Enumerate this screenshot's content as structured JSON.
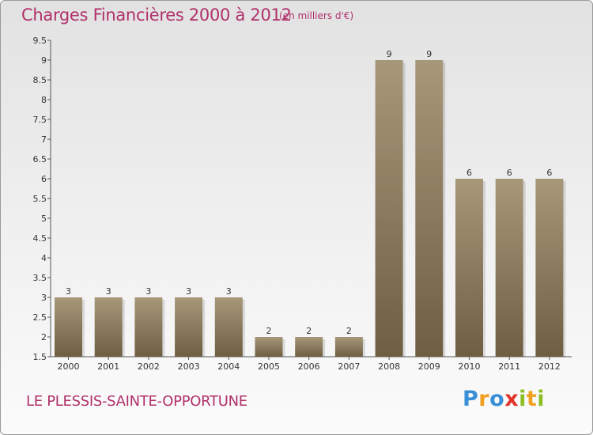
{
  "title": "Charges Financières 2000 à 2012",
  "subtitle": "(en milliers d'€)",
  "place": "LE PLESSIS-SAINTE-OPPORTUNE",
  "logo": {
    "letters": [
      "P",
      "r",
      "o",
      "x",
      "i",
      "t",
      "i"
    ],
    "colors": [
      "#3a8fd6",
      "#f0a020",
      "#3a8fd6",
      "#e0342a",
      "#8cbf26",
      "#f0a020",
      "#8cbf26"
    ]
  },
  "colors": {
    "bar_top": "#a8987a",
    "bar_bottom": "#6e5e42",
    "text_accent": "#b0306a"
  },
  "chart_data": {
    "type": "bar",
    "categories": [
      "2000",
      "2001",
      "2002",
      "2003",
      "2004",
      "2005",
      "2006",
      "2007",
      "2008",
      "2009",
      "2010",
      "2011",
      "2012"
    ],
    "values": [
      3,
      3,
      3,
      3,
      3,
      2,
      2,
      2,
      9,
      9,
      6,
      6,
      6
    ],
    "data_labels": [
      "3",
      "3",
      "3",
      "3",
      "3",
      "2",
      "2",
      "2",
      "9",
      "9",
      "6",
      "6",
      "6"
    ],
    "ylim": [
      1.5,
      9.5
    ],
    "yticks": [
      1.5,
      2,
      2.5,
      3,
      3.5,
      4,
      4.5,
      5,
      5.5,
      6,
      6.5,
      7,
      7.5,
      8,
      8.5,
      9,
      9.5
    ],
    "ytick_labels": [
      "1.5",
      "2",
      "2.5",
      "3",
      "3.5",
      "4",
      "4.5",
      "5",
      "5.5",
      "6",
      "6.5",
      "7",
      "7.5",
      "8",
      "8.5",
      "9",
      "9.5"
    ],
    "grid": false
  }
}
